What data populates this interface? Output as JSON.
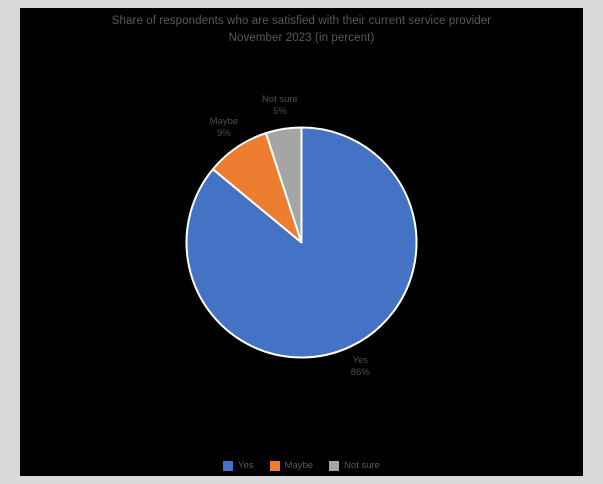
{
  "frame": {
    "outer_background": "#d9d9d9",
    "panel_background": "#000000",
    "text_color": "#595959"
  },
  "title": {
    "line1": "Share of respondents who are satisfied with their current service provider",
    "line2": "November 2023 (in percent)"
  },
  "chart_data": {
    "type": "pie",
    "title": "Share of respondents who are satisfied with their current service provider, November 2023 (in percent)",
    "categories": [
      "Yes",
      "Maybe",
      "Not sure"
    ],
    "values": [
      86,
      9,
      5
    ],
    "slice_pcts": [
      "86%",
      "9%",
      "5%"
    ],
    "colors": [
      "#4472c4",
      "#ed7d31",
      "#a5a5a5"
    ],
    "slice_border_color": "#ffffff",
    "start_angle_deg": 0,
    "direction": "clockwise",
    "label_position": "outside-end",
    "legend_position": "bottom"
  },
  "legend": {
    "items": [
      {
        "label": "Yes",
        "color": "#4472c4"
      },
      {
        "label": "Maybe",
        "color": "#ed7d31"
      },
      {
        "label": "Not sure",
        "color": "#a5a5a5"
      }
    ]
  }
}
